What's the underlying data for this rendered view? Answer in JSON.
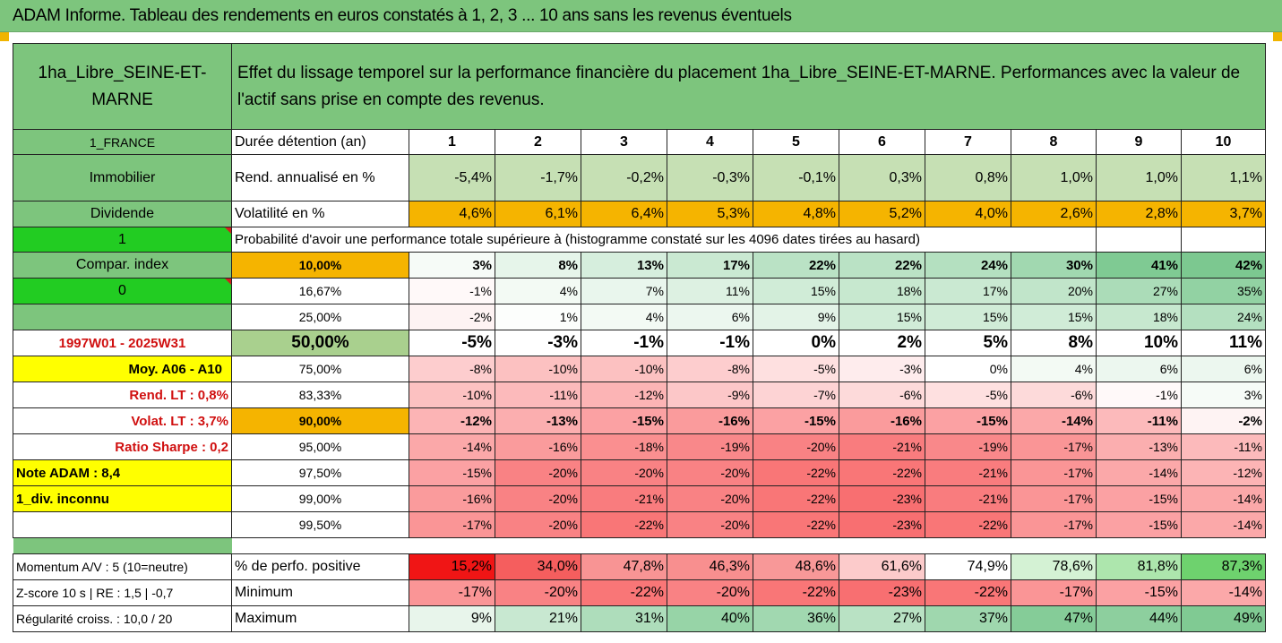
{
  "title": "ADAM Informe. Tableau des rendements en euros constatés à 1, 2, 3 ... 10 ans sans les revenus éventuels",
  "header": {
    "asset_name": "1ha_Libre_SEINE-ET-MARNE",
    "description": "Effet du lissage temporel sur la performance financière du placement 1ha_Libre_SEINE-ET-MARNE. Performances avec la valeur de l'actif sans prise en compte des revenus."
  },
  "left_labels": {
    "country": "1_FRANCE",
    "category": "Immobilier",
    "dividend": "Dividende",
    "flag1": "1",
    "compar": "Compar. index",
    "flag0": "0",
    "period": "1997W01 - 2025W31",
    "moy": "Moy. A06 - A10",
    "rend_lt": "Rend. LT :   0,8%",
    "volat_lt": "Volat. LT :   3,7%",
    "sharpe": "Ratio Sharpe :   0,2",
    "note": "Note ADAM : 8,4",
    "div": "1_div. inconnu",
    "momentum": "Momentum A/V : 5 (10=neutre)",
    "zscore": "Z-score 10 s  |  RE : 1,5  |  -0,7",
    "regularite": "Régularité croiss. : 10,0 / 20"
  },
  "row_labels": {
    "duration": "Durée détention (an)",
    "rendement": "Rend. annualisé en %",
    "volatility": "Volatilité en %",
    "probability": "Probabilité d'avoir une performance totale supérieure à (histogramme constaté sur les 4096 dates tirées au hasard)",
    "perf_positive": "% de perfo. positive",
    "minimum": "Minimum",
    "maximum": "Maximum"
  },
  "years": [
    "1",
    "2",
    "3",
    "4",
    "5",
    "6",
    "7",
    "8",
    "9",
    "10"
  ],
  "rendement": [
    "-5,4%",
    "-1,7%",
    "-0,2%",
    "-0,3%",
    "-0,1%",
    "0,3%",
    "0,8%",
    "1,0%",
    "1,0%",
    "1,1%"
  ],
  "volatility": [
    "4,6%",
    "6,1%",
    "6,4%",
    "5,3%",
    "4,8%",
    "5,2%",
    "4,0%",
    "2,6%",
    "2,8%",
    "3,7%"
  ],
  "quantiles": [
    {
      "label": "10,00%",
      "values": [
        "3%",
        "8%",
        "13%",
        "17%",
        "22%",
        "22%",
        "24%",
        "30%",
        "41%",
        "42%"
      ]
    },
    {
      "label": "16,67%",
      "values": [
        "-1%",
        "4%",
        "7%",
        "11%",
        "15%",
        "18%",
        "17%",
        "20%",
        "27%",
        "35%"
      ]
    },
    {
      "label": "25,00%",
      "values": [
        "-2%",
        "1%",
        "4%",
        "6%",
        "9%",
        "15%",
        "15%",
        "15%",
        "18%",
        "24%"
      ]
    },
    {
      "label": "50,00%",
      "values": [
        "-5%",
        "-3%",
        "-1%",
        "-1%",
        "0%",
        "2%",
        "5%",
        "8%",
        "10%",
        "11%"
      ]
    },
    {
      "label": "75,00%",
      "values": [
        "-8%",
        "-10%",
        "-10%",
        "-8%",
        "-5%",
        "-3%",
        "0%",
        "4%",
        "6%",
        "6%"
      ]
    },
    {
      "label": "83,33%",
      "values": [
        "-10%",
        "-11%",
        "-12%",
        "-9%",
        "-7%",
        "-6%",
        "-5%",
        "-6%",
        "-1%",
        "3%"
      ]
    },
    {
      "label": "90,00%",
      "values": [
        "-12%",
        "-13%",
        "-15%",
        "-16%",
        "-15%",
        "-16%",
        "-15%",
        "-14%",
        "-11%",
        "-2%"
      ]
    },
    {
      "label": "95,00%",
      "values": [
        "-14%",
        "-16%",
        "-18%",
        "-19%",
        "-20%",
        "-21%",
        "-19%",
        "-17%",
        "-13%",
        "-11%"
      ]
    },
    {
      "label": "97,50%",
      "values": [
        "-15%",
        "-20%",
        "-20%",
        "-20%",
        "-22%",
        "-22%",
        "-21%",
        "-17%",
        "-14%",
        "-12%"
      ]
    },
    {
      "label": "99,00%",
      "values": [
        "-16%",
        "-20%",
        "-21%",
        "-20%",
        "-22%",
        "-23%",
        "-21%",
        "-17%",
        "-15%",
        "-14%"
      ]
    },
    {
      "label": "99,50%",
      "values": [
        "-17%",
        "-20%",
        "-22%",
        "-20%",
        "-22%",
        "-23%",
        "-22%",
        "-17%",
        "-15%",
        "-14%"
      ]
    }
  ],
  "perf_positive": [
    "15,2%",
    "34,0%",
    "47,8%",
    "46,3%",
    "48,6%",
    "61,6%",
    "74,9%",
    "78,6%",
    "81,8%",
    "87,3%"
  ],
  "minimum": [
    "-17%",
    "-20%",
    "-22%",
    "-20%",
    "-22%",
    "-23%",
    "-22%",
    "-17%",
    "-15%",
    "-14%"
  ],
  "maximum": [
    "9%",
    "21%",
    "31%",
    "40%",
    "36%",
    "27%",
    "37%",
    "47%",
    "44%",
    "49%"
  ],
  "colors": {
    "green_header": "#7dc57d",
    "bright_green": "#22cc22",
    "yellow": "#ffff00",
    "orange": "#f5b400",
    "positive_strong": "#63be7b",
    "negative_strong": "#f8696b",
    "red_text": "#d01010"
  }
}
